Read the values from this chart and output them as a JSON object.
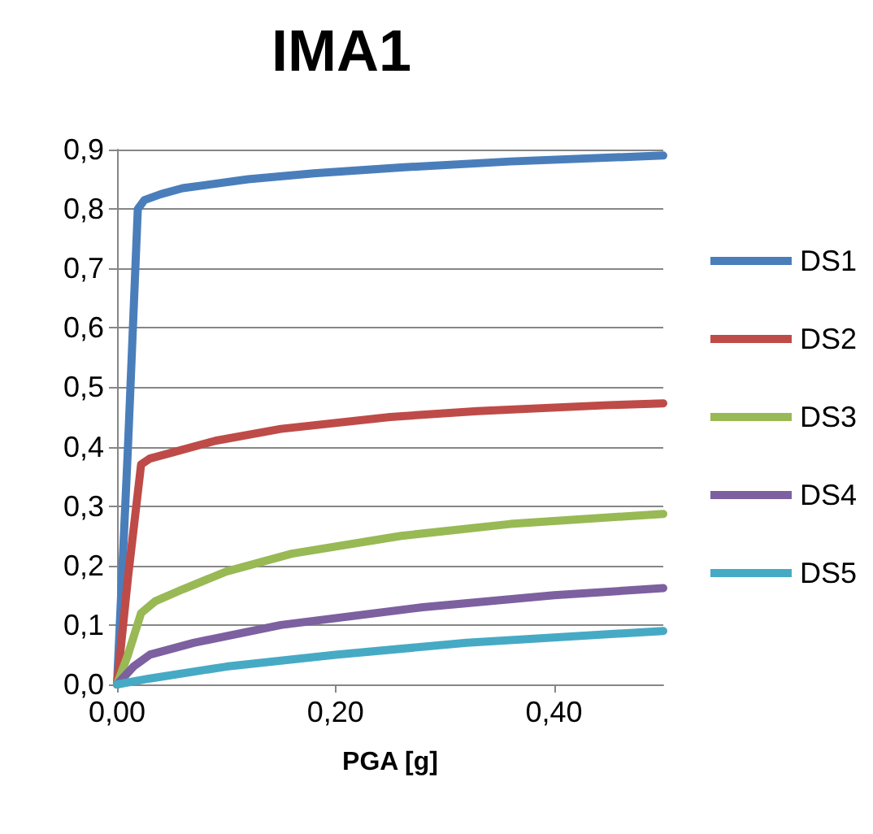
{
  "chart_data": {
    "type": "line",
    "title": "IMA1",
    "xlabel": "PGA [g]",
    "xlim": [
      0,
      0.5
    ],
    "xticks": [
      {
        "value": 0,
        "label": "0,00"
      },
      {
        "value": 0.2,
        "label": "0,20"
      },
      {
        "value": 0.4,
        "label": "0,40"
      }
    ],
    "ylim": [
      0,
      0.9
    ],
    "yticks": [
      {
        "value": 0,
        "label": "0,0"
      },
      {
        "value": 0.1,
        "label": "0,1"
      },
      {
        "value": 0.2,
        "label": "0,2"
      },
      {
        "value": 0.3,
        "label": "0,3"
      },
      {
        "value": 0.4,
        "label": "0,4"
      },
      {
        "value": 0.5,
        "label": "0,5"
      },
      {
        "value": 0.6,
        "label": "0,6"
      },
      {
        "value": 0.7,
        "label": "0,7"
      },
      {
        "value": 0.8,
        "label": "0,8"
      },
      {
        "value": 0.9,
        "label": "0,9"
      }
    ],
    "grid": "y",
    "legend": "right",
    "marker": "none",
    "line_style": "solid",
    "series": [
      {
        "name": "DS1",
        "color": "#4a7ebb",
        "x": [
          0,
          0.01,
          0.019,
          0.025,
          0.04,
          0.06,
          0.12,
          0.18,
          0.26,
          0.36,
          0.5
        ],
        "values": [
          0,
          0.4,
          0.8,
          0.815,
          0.825,
          0.835,
          0.85,
          0.86,
          0.87,
          0.88,
          0.89
        ]
      },
      {
        "name": "DS2",
        "color": "#be4b48",
        "x": [
          0,
          0.01,
          0.022,
          0.03,
          0.05,
          0.09,
          0.15,
          0.25,
          0.33,
          0.45,
          0.5
        ],
        "values": [
          0,
          0.18,
          0.37,
          0.38,
          0.39,
          0.41,
          0.43,
          0.45,
          0.46,
          0.47,
          0.473
        ]
      },
      {
        "name": "DS3",
        "color": "#98b954",
        "x": [
          0,
          0.01,
          0.022,
          0.035,
          0.06,
          0.1,
          0.16,
          0.26,
          0.36,
          0.5
        ],
        "values": [
          0,
          0.05,
          0.12,
          0.14,
          0.16,
          0.19,
          0.22,
          0.25,
          0.27,
          0.287
        ]
      },
      {
        "name": "DS4",
        "color": "#7d60a0",
        "x": [
          0,
          0.015,
          0.03,
          0.07,
          0.15,
          0.28,
          0.4,
          0.5
        ],
        "values": [
          0,
          0.03,
          0.05,
          0.07,
          0.1,
          0.13,
          0.15,
          0.162
        ]
      },
      {
        "name": "DS5",
        "color": "#46aac5",
        "x": [
          0,
          0.03,
          0.1,
          0.2,
          0.32,
          0.5
        ],
        "values": [
          0,
          0.01,
          0.03,
          0.05,
          0.07,
          0.09
        ]
      }
    ]
  }
}
